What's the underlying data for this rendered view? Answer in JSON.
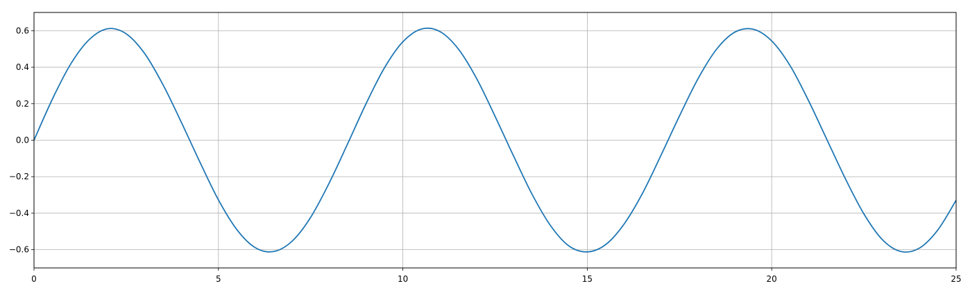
{
  "chart_data": {
    "type": "line",
    "title": "",
    "xlabel": "",
    "ylabel": "",
    "xlim": [
      0,
      25
    ],
    "ylim": [
      -0.7,
      0.7
    ],
    "grid": true,
    "legend": "none",
    "x_ticks": [
      0,
      5,
      10,
      15,
      20,
      25
    ],
    "y_ticks": [
      -0.6,
      -0.4,
      -0.2,
      0.0,
      0.2,
      0.4,
      0.6
    ],
    "x_tick_labels": [
      "0",
      "5",
      "10",
      "15",
      "20",
      "25"
    ],
    "y_tick_labels": [
      "−0.6",
      "−0.4",
      "−0.2",
      "0.0",
      "0.2",
      "0.4",
      "0.6"
    ],
    "series": [
      {
        "color": "#1f77b4",
        "x": [
          0,
          0.5,
          1,
          1.5,
          2,
          2.5,
          3,
          3.5,
          4,
          4.5,
          5,
          5.5,
          6,
          6.5,
          7,
          7.5,
          8,
          8.5,
          9,
          9.5,
          10,
          10.5,
          11,
          11.5,
          12,
          12.5,
          13,
          13.5,
          14,
          14.5,
          15,
          15.5,
          16,
          16.5,
          17,
          17.5,
          18,
          18.5,
          19,
          19.5,
          20,
          20.5,
          21,
          21.5,
          22,
          22.5,
          23,
          23.5,
          24,
          24.5,
          25
        ],
        "y": [
          0.0,
          0.226,
          0.419,
          0.552,
          0.611,
          0.583,
          0.475,
          0.303,
          0.096,
          -0.121,
          -0.327,
          -0.49,
          -0.589,
          -0.61,
          -0.553,
          -0.423,
          -0.236,
          -0.021,
          0.199,
          0.396,
          0.539,
          0.609,
          0.596,
          0.501,
          0.338,
          0.131,
          -0.086,
          -0.295,
          -0.467,
          -0.579,
          -0.612,
          -0.572,
          -0.459,
          -0.29,
          -0.082,
          0.133,
          0.336,
          0.497,
          0.592,
          0.608,
          0.544,
          0.408,
          0.216,
          0.002,
          -0.212,
          -0.404,
          -0.545,
          -0.61,
          -0.592,
          -0.493,
          -0.329
        ]
      }
    ]
  }
}
